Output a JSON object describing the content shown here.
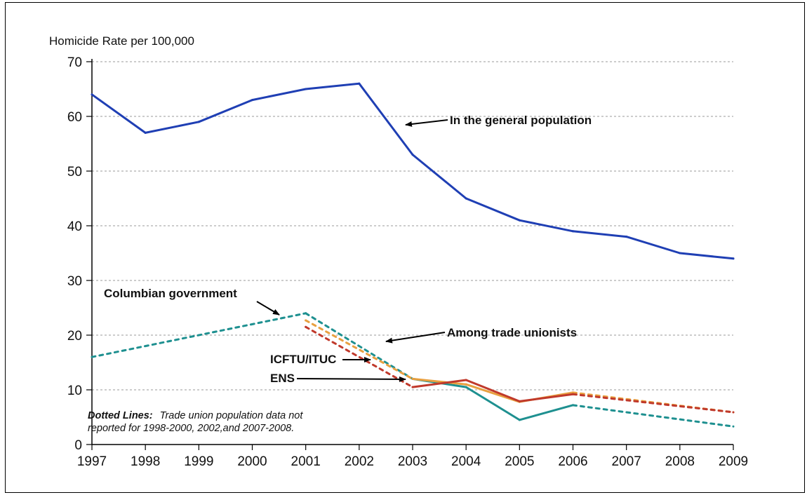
{
  "chart_data": {
    "type": "line",
    "ylabel": "Homicide Rate per 100,000",
    "ylim": [
      0,
      70
    ],
    "yticks": [
      0,
      10,
      20,
      30,
      40,
      50,
      60,
      70
    ],
    "x": [
      "1997",
      "1998",
      "1999",
      "2000",
      "2001",
      "2002",
      "2003",
      "2004",
      "2005",
      "2006",
      "2007",
      "2008",
      "2009"
    ],
    "grid": "horizontal dashed",
    "series": [
      {
        "name": "In the general population",
        "color": "#1f3fb4",
        "points": [
          [
            1997,
            64
          ],
          [
            1998,
            57
          ],
          [
            1999,
            59
          ],
          [
            2000,
            63
          ],
          [
            2001,
            65
          ],
          [
            2002,
            66
          ],
          [
            2003,
            53
          ],
          [
            2004,
            45
          ],
          [
            2005,
            41
          ],
          [
            2006,
            39
          ],
          [
            2007,
            38
          ],
          [
            2008,
            35
          ],
          [
            2009,
            34
          ]
        ],
        "dotted_ranges": []
      },
      {
        "name": "Columbian government",
        "color": "#1e9090",
        "points": [
          [
            1997,
            16
          ],
          [
            2001,
            24
          ],
          [
            2003,
            12
          ],
          [
            2004,
            10.5
          ],
          [
            2005,
            4.5
          ],
          [
            2006,
            7.2
          ],
          [
            2009,
            3.3
          ]
        ],
        "dotted_ranges": [
          [
            1998,
            2000
          ],
          [
            2002,
            2002
          ],
          [
            2007,
            2008
          ]
        ]
      },
      {
        "name": "ICFTU/ITUC",
        "color": "#e8a040",
        "points": [
          [
            2001,
            22.7
          ],
          [
            2003,
            12
          ],
          [
            2004,
            11
          ],
          [
            2005,
            7.8
          ],
          [
            2006,
            9.5
          ],
          [
            2009,
            5.9
          ]
        ],
        "dotted_ranges": [
          [
            2002,
            2002
          ],
          [
            2007,
            2008
          ]
        ]
      },
      {
        "name": "ENS",
        "color": "#c0392b",
        "points": [
          [
            2001,
            21.5
          ],
          [
            2003,
            10.5
          ],
          [
            2004,
            11.8
          ],
          [
            2005,
            7.9
          ],
          [
            2006,
            9.2
          ],
          [
            2009,
            5.9
          ]
        ],
        "dotted_ranges": [
          [
            2002,
            2002
          ],
          [
            2007,
            2008
          ]
        ]
      }
    ],
    "annotations": {
      "general": "In the general population",
      "government": "Columbian government",
      "unionists": "Among trade unionists",
      "icftu": "ICFTU/ITUC",
      "ens": "ENS"
    },
    "note": {
      "bold": "Dotted Lines:",
      "line1": "Trade union population data not",
      "line2": "reported for 1998-2000, 2002,and 2007-2008."
    }
  }
}
